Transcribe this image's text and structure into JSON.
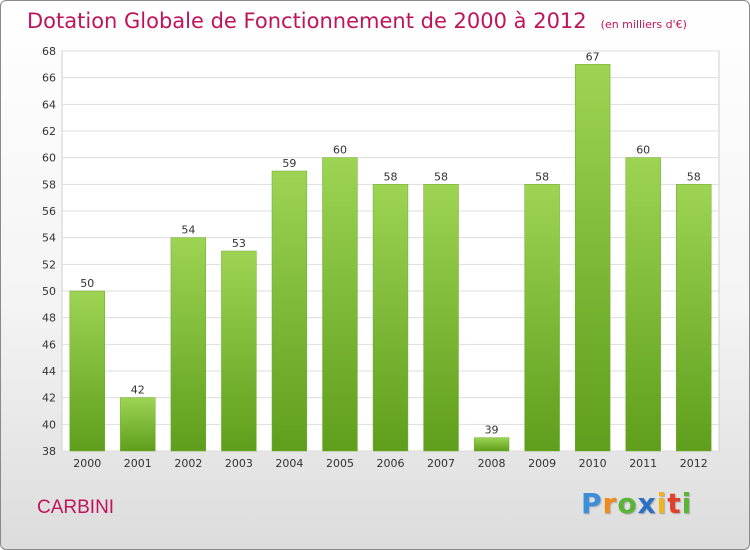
{
  "chart_data": {
    "type": "bar",
    "title": "Dotation Globale de Fonctionnement de 2000 à 2012",
    "unit_label": "(en milliers d'€)",
    "categories": [
      "2000",
      "2001",
      "2002",
      "2003",
      "2004",
      "2005",
      "2006",
      "2007",
      "2008",
      "2009",
      "2010",
      "2011",
      "2012"
    ],
    "values": [
      50,
      42,
      54,
      53,
      59,
      60,
      58,
      58,
      39,
      58,
      67,
      60,
      58
    ],
    "ylim": [
      38,
      68
    ],
    "yticks": [
      38,
      40,
      42,
      44,
      46,
      48,
      50,
      52,
      54,
      56,
      58,
      60,
      62,
      64,
      66,
      68
    ],
    "xlabel": "",
    "ylabel": "",
    "grid": true,
    "bar_color": "#7ec03a"
  },
  "commune": "CARBINI",
  "logo": {
    "letters": [
      "P",
      "r",
      "o",
      "x",
      "i",
      "t",
      "i"
    ],
    "colors": [
      "#3a8fd8",
      "#f08a1c",
      "#5bb338",
      "#2d6fc4",
      "#f0b41c",
      "#e0402a",
      "#5bb338"
    ]
  }
}
